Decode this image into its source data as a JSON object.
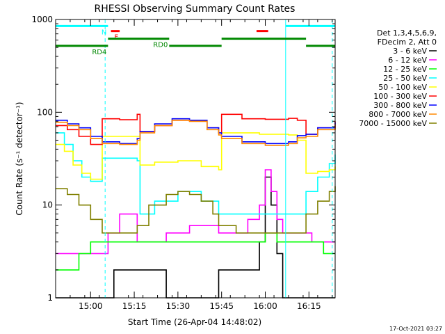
{
  "chart_data": {
    "type": "line",
    "title": "RHESSI Observing Summary Count Rates",
    "xlabel": "Start Time (26-Apr-04 14:48:02)",
    "ylabel": "Count Rate (s⁻¹ detector⁻¹)",
    "yscale": "log",
    "ylim": [
      1,
      1000
    ],
    "xlim_minutes": [
      0,
      96
    ],
    "y_ticks": [
      {
        "value": 1,
        "label": "1"
      },
      {
        "value": 10,
        "label": "10"
      },
      {
        "value": 100,
        "label": "100"
      },
      {
        "value": 1000,
        "label": "1000"
      }
    ],
    "x_ticks": [
      {
        "minute": 12,
        "label": "15:00"
      },
      {
        "minute": 27,
        "label": "15:15"
      },
      {
        "minute": 42,
        "label": "15:30"
      },
      {
        "minute": 57,
        "label": "15:45"
      },
      {
        "minute": 72,
        "label": "16:00"
      },
      {
        "minute": 87,
        "label": "16:15"
      }
    ],
    "legend_header": [
      "Det 1,3,4,5,6,9,",
      "FDecim 2, Att 0"
    ],
    "series": [
      {
        "name": "3 - 6 keV",
        "color": "#000000",
        "x": [
          0,
          12,
          20,
          28,
          38,
          46,
          56,
          62,
          66,
          70,
          72,
          74,
          76,
          78,
          80,
          84,
          88,
          92,
          96
        ],
        "y": [
          1,
          1,
          2,
          2,
          1,
          1,
          2,
          2,
          2,
          4,
          20,
          10,
          3,
          1,
          1,
          1,
          1,
          1,
          1
        ]
      },
      {
        "name": "6 - 12 keV",
        "color": "#ff00ff",
        "x": [
          0,
          12,
          18,
          22,
          28,
          38,
          46,
          56,
          62,
          66,
          70,
          72,
          74,
          76,
          78,
          80,
          84,
          88,
          92,
          96
        ],
        "y": [
          3,
          3,
          5,
          8,
          4,
          5,
          6,
          5,
          5,
          7,
          10,
          24,
          14,
          7,
          5,
          5,
          5,
          4,
          4,
          4
        ]
      },
      {
        "name": "12 - 25 keV",
        "color": "#00ff00",
        "x": [
          0,
          4,
          8,
          12,
          20,
          28,
          38,
          46,
          56,
          66,
          72,
          76,
          80,
          88,
          92,
          96
        ],
        "y": [
          2,
          2,
          3,
          4,
          4,
          4,
          4,
          4,
          4,
          4,
          5,
          4,
          4,
          4,
          3,
          3
        ]
      },
      {
        "name": "25 - 50 keV",
        "color": "#00ffff",
        "x": [
          0,
          3,
          6,
          9,
          12,
          16,
          28,
          29,
          34,
          42,
          50,
          56,
          57,
          60,
          70,
          80,
          83,
          86,
          90,
          94,
          96
        ],
        "y": [
          60,
          45,
          30,
          20,
          18,
          32,
          30,
          8,
          11,
          14,
          11,
          8,
          8,
          8,
          8,
          8,
          8,
          14,
          20,
          28,
          35
        ]
      },
      {
        "name": "50 - 100 keV",
        "color": "#ffff00",
        "x": [
          0,
          3,
          6,
          9,
          12,
          16,
          28,
          29,
          34,
          42,
          50,
          56,
          57,
          60,
          70,
          80,
          83,
          86,
          90,
          94,
          96
        ],
        "y": [
          45,
          38,
          27,
          22,
          19,
          55,
          55,
          27,
          29,
          30,
          26,
          24,
          60,
          60,
          58,
          57,
          50,
          22,
          23,
          24,
          26
        ]
      },
      {
        "name": "100 - 300 keV",
        "color": "#ff0000",
        "x": [
          0,
          4,
          8,
          12,
          16,
          22,
          28,
          29,
          34,
          40,
          46,
          52,
          56,
          57,
          64,
          72,
          80,
          83,
          86,
          90,
          96
        ],
        "y": [
          72,
          65,
          55,
          45,
          85,
          83,
          95,
          62,
          72,
          82,
          80,
          68,
          60,
          95,
          85,
          84,
          86,
          82,
          58,
          68,
          80
        ]
      },
      {
        "name": "300 - 800 keV",
        "color": "#0000ff",
        "x": [
          0,
          4,
          8,
          12,
          16,
          22,
          28,
          29,
          34,
          40,
          46,
          52,
          56,
          57,
          64,
          72,
          80,
          83,
          86,
          90,
          96
        ],
        "y": [
          82,
          75,
          68,
          55,
          48,
          46,
          52,
          62,
          75,
          85,
          82,
          68,
          60,
          55,
          48,
          46,
          48,
          56,
          58,
          68,
          78
        ]
      },
      {
        "name": "800 - 7000 keV",
        "color": "#ff8800",
        "x": [
          0,
          4,
          8,
          12,
          16,
          22,
          28,
          29,
          34,
          40,
          46,
          52,
          56,
          57,
          64,
          72,
          80,
          83,
          86,
          90,
          96
        ],
        "y": [
          78,
          72,
          65,
          52,
          46,
          45,
          50,
          60,
          72,
          82,
          80,
          65,
          57,
          52,
          46,
          44,
          46,
          53,
          55,
          65,
          74
        ]
      },
      {
        "name": "7000 - 15000 keV",
        "color": "#808000",
        "x": [
          0,
          4,
          8,
          12,
          16,
          20,
          24,
          28,
          32,
          38,
          42,
          46,
          50,
          54,
          56,
          62,
          72,
          82,
          86,
          90,
          94,
          96
        ],
        "y": [
          15,
          13,
          10,
          7,
          5,
          5,
          5,
          6,
          10,
          13,
          14,
          13,
          11,
          8,
          6,
          5,
          5,
          5,
          8,
          11,
          14,
          16
        ]
      }
    ],
    "annotations": [
      {
        "label": "N",
        "color": "#00ffff",
        "x_start": 0,
        "x_end": 18,
        "level": 850
      },
      {
        "label": "",
        "color": "#00ffff",
        "x_start": 79,
        "x_end": 96,
        "level": 850
      },
      {
        "label": "F",
        "color": "#ff0000",
        "x_start": 19,
        "x_end": 22,
        "level": 750
      },
      {
        "label": "",
        "color": "#ff0000",
        "x_start": 69,
        "x_end": 73,
        "level": 750
      },
      {
        "label": "RD0",
        "color": "#008800",
        "x_start": 18,
        "x_end": 39,
        "level": 620
      },
      {
        "label": "",
        "color": "#008800",
        "x_start": 57,
        "x_end": 86,
        "level": 620
      },
      {
        "label": "RD4",
        "color": "#008800",
        "x_start": 0,
        "x_end": 18,
        "level": 520
      },
      {
        "label": "",
        "color": "#008800",
        "x_start": 39,
        "x_end": 57,
        "level": 520
      },
      {
        "label": "",
        "color": "#008800",
        "x_start": 86,
        "x_end": 96,
        "level": 520
      }
    ],
    "dashed_markers": [
      {
        "minute": 17,
        "color": "#00ffff"
      },
      {
        "minute": 95,
        "color": "#00ffff"
      }
    ],
    "solid_markers": [
      {
        "minute": 79,
        "color": "#00ffff"
      }
    ],
    "grid": false,
    "legend_placement": "right"
  },
  "footer": {
    "timestamp": "17-Oct-2021 03:27"
  }
}
